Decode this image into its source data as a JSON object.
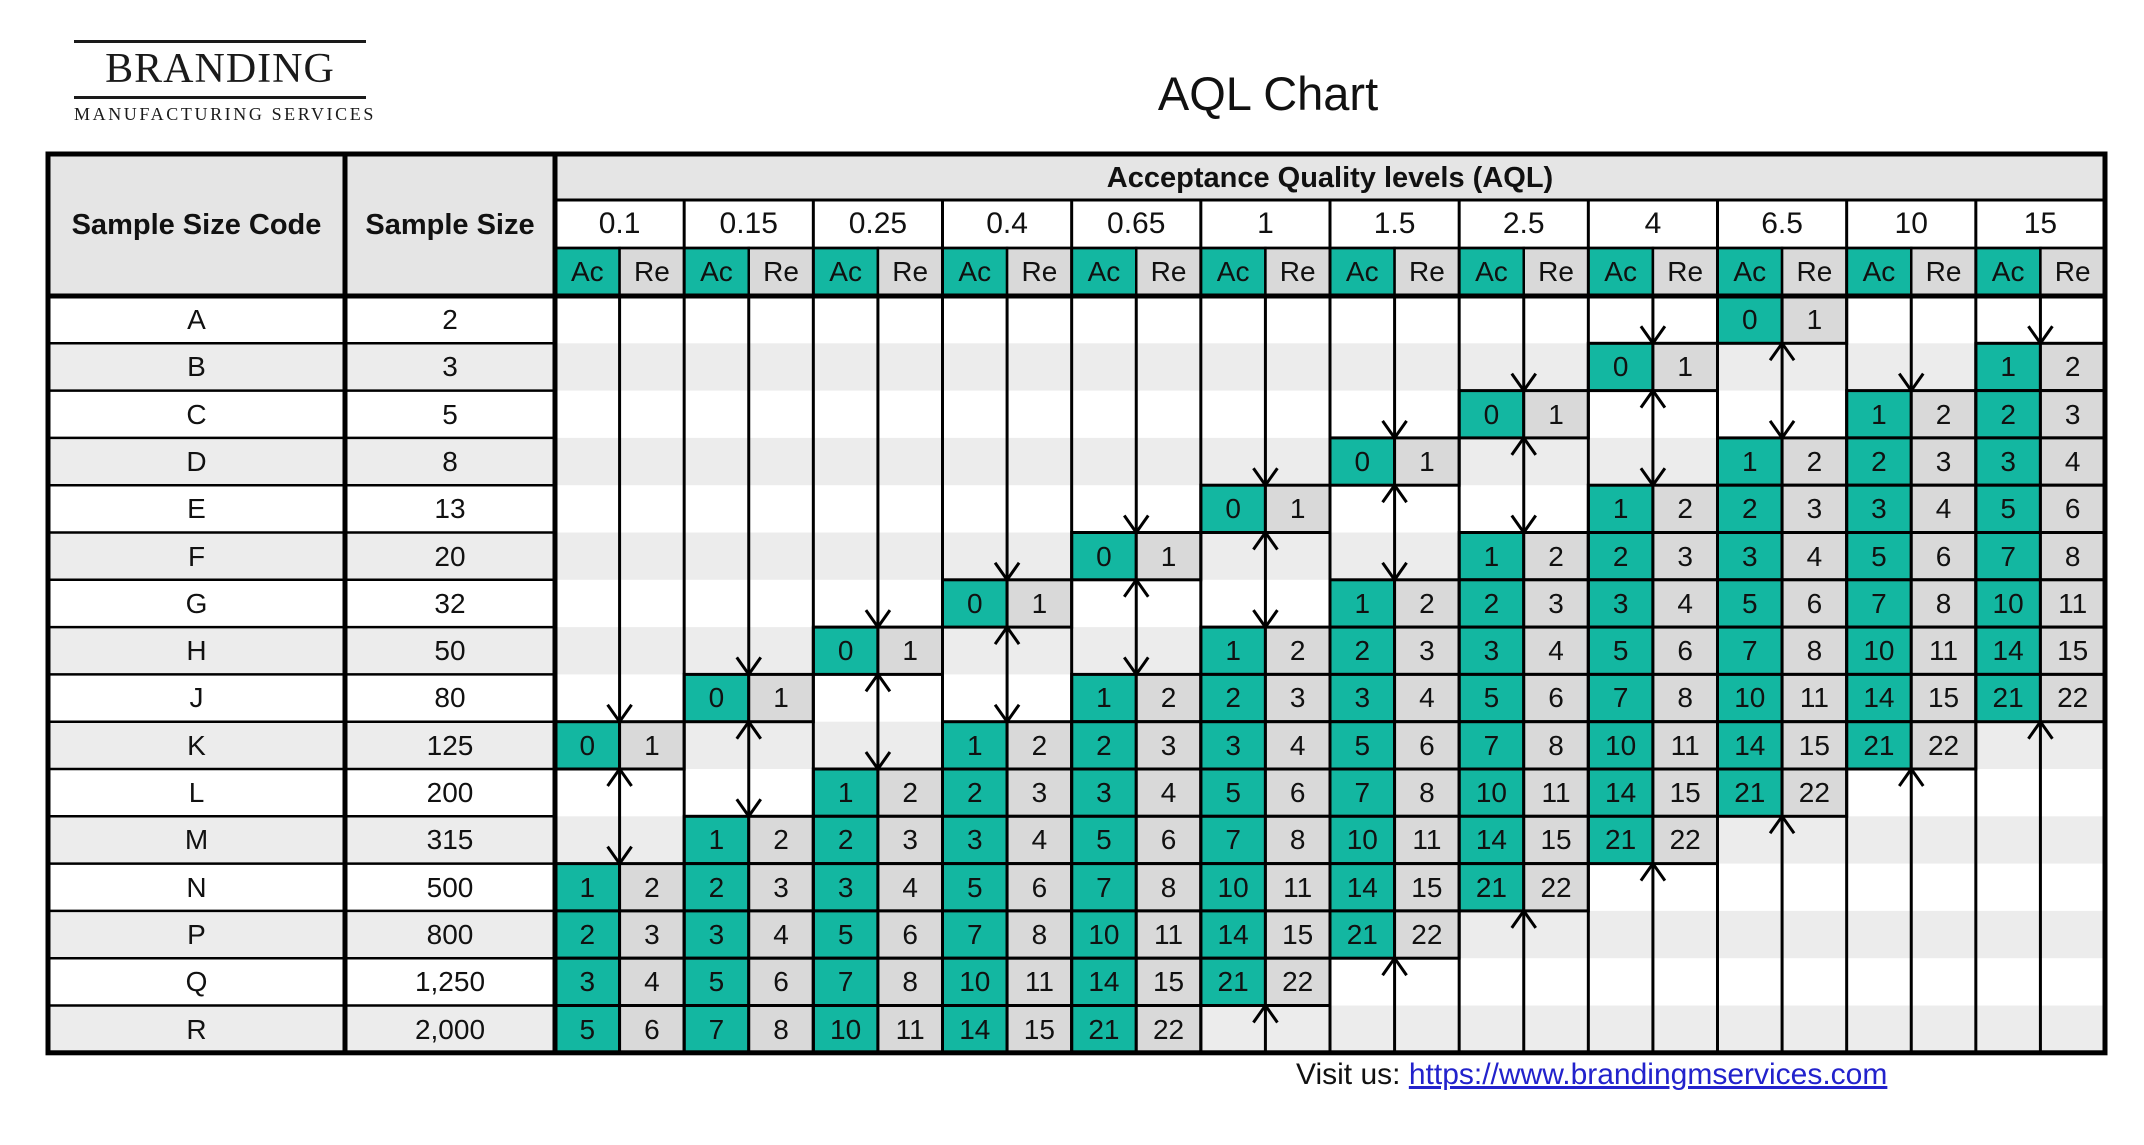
{
  "logo": {
    "name": "BRANDING",
    "subtitle": "MANUFACTURING SERVICES"
  },
  "title": "AQL Chart",
  "footer": {
    "label": "Visit us:",
    "link_text": "https://www.brandingmservices.com"
  },
  "colors": {
    "accept_teal": "#13B7A1",
    "reject_gray": "#D9D9D9",
    "stripe_gray": "#ECECEC",
    "header_gray": "#E5E5E5",
    "line_black": "#000000",
    "link_blue": "#2222CC"
  },
  "table": {
    "col1_header": "Sample Size Code",
    "col2_header": "Sample Size",
    "banner": "Acceptance Quality levels (AQL)",
    "ac_label": "Ac",
    "re_label": "Re",
    "aql_levels": [
      "0.1",
      "0.15",
      "0.25",
      "0.4",
      "0.65",
      "1",
      "1.5",
      "2.5",
      "4",
      "6.5",
      "10",
      "15"
    ],
    "rows": [
      {
        "code": "A",
        "size": "2",
        "cells": [
          null,
          null,
          null,
          null,
          null,
          null,
          null,
          null,
          null,
          [
            "0",
            "1"
          ],
          null,
          null
        ]
      },
      {
        "code": "B",
        "size": "3",
        "cells": [
          null,
          null,
          null,
          null,
          null,
          null,
          null,
          null,
          [
            "0",
            "1"
          ],
          null,
          null,
          [
            "1",
            "2"
          ]
        ]
      },
      {
        "code": "C",
        "size": "5",
        "cells": [
          null,
          null,
          null,
          null,
          null,
          null,
          null,
          [
            "0",
            "1"
          ],
          null,
          null,
          [
            "1",
            "2"
          ],
          [
            "2",
            "3"
          ]
        ]
      },
      {
        "code": "D",
        "size": "8",
        "cells": [
          null,
          null,
          null,
          null,
          null,
          null,
          [
            "0",
            "1"
          ],
          null,
          null,
          [
            "1",
            "2"
          ],
          [
            "2",
            "3"
          ],
          [
            "3",
            "4"
          ]
        ]
      },
      {
        "code": "E",
        "size": "13",
        "cells": [
          null,
          null,
          null,
          null,
          null,
          [
            "0",
            "1"
          ],
          null,
          null,
          [
            "1",
            "2"
          ],
          [
            "2",
            "3"
          ],
          [
            "3",
            "4"
          ],
          [
            "5",
            "6"
          ]
        ]
      },
      {
        "code": "F",
        "size": "20",
        "cells": [
          null,
          null,
          null,
          null,
          [
            "0",
            "1"
          ],
          null,
          null,
          [
            "1",
            "2"
          ],
          [
            "2",
            "3"
          ],
          [
            "3",
            "4"
          ],
          [
            "5",
            "6"
          ],
          [
            "7",
            "8"
          ]
        ]
      },
      {
        "code": "G",
        "size": "32",
        "cells": [
          null,
          null,
          null,
          [
            "0",
            "1"
          ],
          null,
          null,
          [
            "1",
            "2"
          ],
          [
            "2",
            "3"
          ],
          [
            "3",
            "4"
          ],
          [
            "5",
            "6"
          ],
          [
            "7",
            "8"
          ],
          [
            "10",
            "11"
          ]
        ]
      },
      {
        "code": "H",
        "size": "50",
        "cells": [
          null,
          null,
          [
            "0",
            "1"
          ],
          null,
          null,
          [
            "1",
            "2"
          ],
          [
            "2",
            "3"
          ],
          [
            "3",
            "4"
          ],
          [
            "5",
            "6"
          ],
          [
            "7",
            "8"
          ],
          [
            "10",
            "11"
          ],
          [
            "14",
            "15"
          ]
        ]
      },
      {
        "code": "J",
        "size": "80",
        "cells": [
          null,
          [
            "0",
            "1"
          ],
          null,
          null,
          [
            "1",
            "2"
          ],
          [
            "2",
            "3"
          ],
          [
            "3",
            "4"
          ],
          [
            "5",
            "6"
          ],
          [
            "7",
            "8"
          ],
          [
            "10",
            "11"
          ],
          [
            "14",
            "15"
          ],
          [
            "21",
            "22"
          ]
        ]
      },
      {
        "code": "K",
        "size": "125",
        "cells": [
          [
            "0",
            "1"
          ],
          null,
          null,
          [
            "1",
            "2"
          ],
          [
            "2",
            "3"
          ],
          [
            "3",
            "4"
          ],
          [
            "5",
            "6"
          ],
          [
            "7",
            "8"
          ],
          [
            "10",
            "11"
          ],
          [
            "14",
            "15"
          ],
          [
            "21",
            "22"
          ],
          null
        ]
      },
      {
        "code": "L",
        "size": "200",
        "cells": [
          null,
          null,
          [
            "1",
            "2"
          ],
          [
            "2",
            "3"
          ],
          [
            "3",
            "4"
          ],
          [
            "5",
            "6"
          ],
          [
            "7",
            "8"
          ],
          [
            "10",
            "11"
          ],
          [
            "14",
            "15"
          ],
          [
            "21",
            "22"
          ],
          null,
          null
        ]
      },
      {
        "code": "M",
        "size": "315",
        "cells": [
          null,
          [
            "1",
            "2"
          ],
          [
            "2",
            "3"
          ],
          [
            "3",
            "4"
          ],
          [
            "5",
            "6"
          ],
          [
            "7",
            "8"
          ],
          [
            "10",
            "11"
          ],
          [
            "14",
            "15"
          ],
          [
            "21",
            "22"
          ],
          null,
          null,
          null
        ]
      },
      {
        "code": "N",
        "size": "500",
        "cells": [
          [
            "1",
            "2"
          ],
          [
            "2",
            "3"
          ],
          [
            "3",
            "4"
          ],
          [
            "5",
            "6"
          ],
          [
            "7",
            "8"
          ],
          [
            "10",
            "11"
          ],
          [
            "14",
            "15"
          ],
          [
            "21",
            "22"
          ],
          null,
          null,
          null,
          null
        ]
      },
      {
        "code": "P",
        "size": "800",
        "cells": [
          [
            "2",
            "3"
          ],
          [
            "3",
            "4"
          ],
          [
            "5",
            "6"
          ],
          [
            "7",
            "8"
          ],
          [
            "10",
            "11"
          ],
          [
            "14",
            "15"
          ],
          [
            "21",
            "22"
          ],
          null,
          null,
          null,
          null,
          null
        ]
      },
      {
        "code": "Q",
        "size": "1,250",
        "cells": [
          [
            "3",
            "4"
          ],
          [
            "5",
            "6"
          ],
          [
            "7",
            "8"
          ],
          [
            "10",
            "11"
          ],
          [
            "14",
            "15"
          ],
          [
            "21",
            "22"
          ],
          null,
          null,
          null,
          null,
          null,
          null
        ]
      },
      {
        "code": "R",
        "size": "2,000",
        "cells": [
          [
            "5",
            "6"
          ],
          [
            "7",
            "8"
          ],
          [
            "10",
            "11"
          ],
          [
            "14",
            "15"
          ],
          [
            "21",
            "22"
          ],
          null,
          null,
          null,
          null,
          null,
          null,
          null
        ]
      }
    ],
    "arrows": [
      {
        "col": 0,
        "dir": "down",
        "from": 0,
        "to": 8
      },
      {
        "col": 0,
        "dir": "updown",
        "from": 10,
        "to": 11
      },
      {
        "col": 1,
        "dir": "down",
        "from": 0,
        "to": 7
      },
      {
        "col": 1,
        "dir": "updown",
        "from": 9,
        "to": 10
      },
      {
        "col": 2,
        "dir": "down",
        "from": 0,
        "to": 6
      },
      {
        "col": 2,
        "dir": "updown",
        "from": 8,
        "to": 9
      },
      {
        "col": 3,
        "dir": "down",
        "from": 0,
        "to": 5
      },
      {
        "col": 3,
        "dir": "updown",
        "from": 7,
        "to": 8
      },
      {
        "col": 4,
        "dir": "down",
        "from": 0,
        "to": 4
      },
      {
        "col": 4,
        "dir": "updown",
        "from": 6,
        "to": 7
      },
      {
        "col": 5,
        "dir": "down",
        "from": 0,
        "to": 3
      },
      {
        "col": 5,
        "dir": "updown",
        "from": 5,
        "to": 6
      },
      {
        "col": 5,
        "dir": "up",
        "from": 15,
        "to": 15
      },
      {
        "col": 6,
        "dir": "down",
        "from": 0,
        "to": 2
      },
      {
        "col": 6,
        "dir": "updown",
        "from": 4,
        "to": 5
      },
      {
        "col": 6,
        "dir": "up",
        "from": 14,
        "to": 15
      },
      {
        "col": 7,
        "dir": "down",
        "from": 0,
        "to": 1
      },
      {
        "col": 7,
        "dir": "updown",
        "from": 3,
        "to": 4
      },
      {
        "col": 7,
        "dir": "up",
        "from": 13,
        "to": 15
      },
      {
        "col": 8,
        "dir": "down",
        "from": 0,
        "to": 0
      },
      {
        "col": 8,
        "dir": "updown",
        "from": 2,
        "to": 3
      },
      {
        "col": 8,
        "dir": "up",
        "from": 12,
        "to": 15
      },
      {
        "col": 9,
        "dir": "updown",
        "from": 1,
        "to": 2
      },
      {
        "col": 9,
        "dir": "up",
        "from": 11,
        "to": 15
      },
      {
        "col": 10,
        "dir": "down",
        "from": 0,
        "to": 1
      },
      {
        "col": 10,
        "dir": "up",
        "from": 10,
        "to": 15
      },
      {
        "col": 11,
        "dir": "down",
        "from": 0,
        "to": 0
      },
      {
        "col": 11,
        "dir": "up",
        "from": 9,
        "to": 15
      }
    ]
  }
}
